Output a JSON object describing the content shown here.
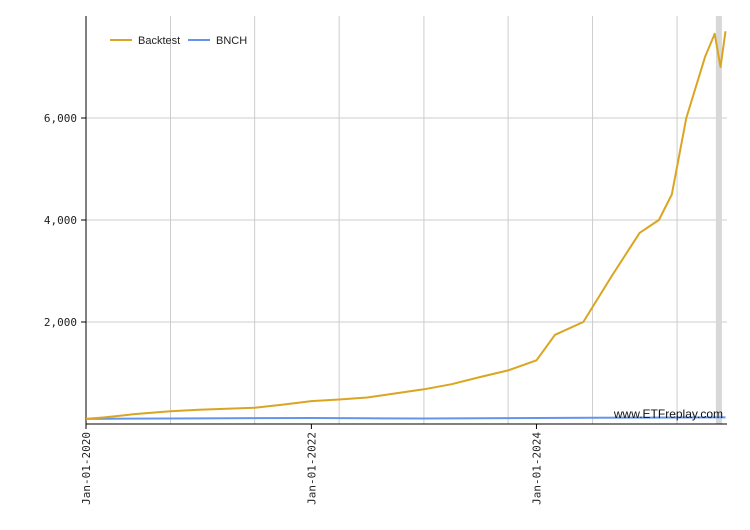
{
  "chart_data": {
    "type": "line",
    "title": "",
    "xlabel": "",
    "ylabel": "",
    "xlim": [
      "2020-01-01",
      "2025-09-10"
    ],
    "ylim": [
      0,
      8000
    ],
    "y_ticks": [
      2000,
      4000,
      6000
    ],
    "y_tick_labels": [
      "2,000",
      "4,000",
      "6,000"
    ],
    "x_ticks": [
      "2020-01-01",
      "2022-01-01",
      "2024-01-01"
    ],
    "x_tick_labels": [
      "Jan-01-2020",
      "Jan-01-2022",
      "Jan-01-2024"
    ],
    "grid": true,
    "legend_position": "top-left",
    "watermark": "www.ETFreplay.com",
    "series": [
      {
        "name": "Backtest",
        "color": "#DAA520",
        "points": [
          [
            "2020-01-01",
            100
          ],
          [
            "2020-03-01",
            130
          ],
          [
            "2020-06-01",
            190
          ],
          [
            "2020-10-01",
            250
          ],
          [
            "2021-01-01",
            280
          ],
          [
            "2021-04-01",
            300
          ],
          [
            "2021-07-01",
            320
          ],
          [
            "2021-10-01",
            380
          ],
          [
            "2022-01-01",
            450
          ],
          [
            "2022-04-01",
            480
          ],
          [
            "2022-07-01",
            520
          ],
          [
            "2022-10-01",
            600
          ],
          [
            "2023-01-01",
            680
          ],
          [
            "2023-04-01",
            780
          ],
          [
            "2023-07-01",
            920
          ],
          [
            "2023-10-01",
            1050
          ],
          [
            "2024-01-01",
            1250
          ],
          [
            "2024-03-01",
            1750
          ],
          [
            "2024-06-01",
            2000
          ],
          [
            "2024-09-01",
            2900
          ],
          [
            "2024-12-01",
            3750
          ],
          [
            "2025-02-01",
            4000
          ],
          [
            "2025-03-15",
            4500
          ],
          [
            "2025-05-01",
            6000
          ],
          [
            "2025-07-01",
            7200
          ],
          [
            "2025-08-01",
            7650
          ],
          [
            "2025-08-20",
            7000
          ],
          [
            "2025-09-05",
            7700
          ]
        ]
      },
      {
        "name": "BNCH",
        "color": "#6495ED",
        "points": [
          [
            "2020-01-01",
            100
          ],
          [
            "2020-06-01",
            105
          ],
          [
            "2021-01-01",
            110
          ],
          [
            "2021-07-01",
            115
          ],
          [
            "2022-01-01",
            118
          ],
          [
            "2022-07-01",
            112
          ],
          [
            "2023-01-01",
            108
          ],
          [
            "2023-07-01",
            112
          ],
          [
            "2024-01-01",
            118
          ],
          [
            "2024-07-01",
            122
          ],
          [
            "2025-01-01",
            126
          ],
          [
            "2025-09-05",
            130
          ]
        ]
      }
    ]
  }
}
